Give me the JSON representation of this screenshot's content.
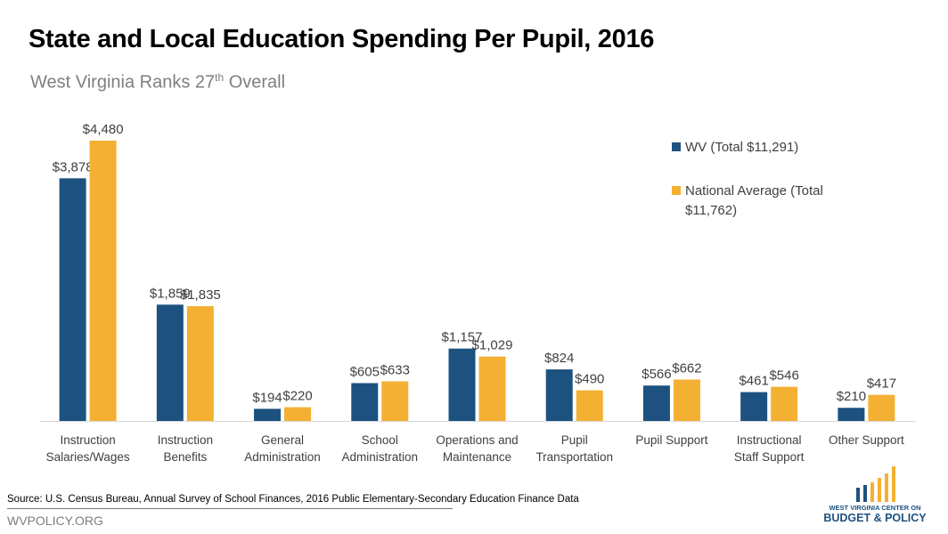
{
  "title": "State and Local Education Spending Per Pupil, 2016",
  "subtitle": {
    "text": "West Virginia Ranks 27",
    "sup": "th",
    "tail": " Overall"
  },
  "source": "Source: U.S. Census Bureau, Annual Survey of School Finances, 2016 Public Elementary-Secondary Education Finance Data",
  "site": "WVPOLICY.ORG",
  "logo": {
    "line1": "WEST VIRGINIA CENTER ON",
    "line2": "BUDGET & POLICY"
  },
  "chart_data": {
    "type": "bar",
    "categories": [
      [
        "Instruction",
        "Salaries/Wages"
      ],
      [
        "Instruction",
        "Benefits"
      ],
      [
        "General",
        "Administration"
      ],
      [
        "School",
        "Administration"
      ],
      [
        "Operations and",
        "Maintenance"
      ],
      [
        "Pupil",
        "Transportation"
      ],
      [
        "Pupil Support"
      ],
      [
        "Instructional",
        "Staff Support"
      ],
      [
        "Other Support"
      ]
    ],
    "series": [
      {
        "name": "WV (Total $11,291)",
        "color": "#1d5280",
        "values": [
          3878,
          1859,
          194,
          605,
          1157,
          824,
          566,
          461,
          210
        ],
        "labels": [
          "$3,878",
          "$1,859",
          "$194",
          "$605",
          "$1,157",
          "$824",
          "$566",
          "$461",
          "$210"
        ]
      },
      {
        "name": "National Average (Total $11,762)",
        "color": "#f4b032",
        "values": [
          4480,
          1835,
          220,
          633,
          1029,
          490,
          662,
          546,
          417
        ],
        "labels": [
          "$4,480",
          "$1,835",
          "$220",
          "$633",
          "$1,029",
          "$490",
          "$662",
          "$546",
          "$417"
        ]
      }
    ],
    "legend_lines": [
      [
        "WV (Total $11,291)"
      ],
      [
        "National Average (Total",
        "$11,762)"
      ]
    ],
    "ylim": [
      0,
      4480
    ],
    "grid": false,
    "legend": "top-right"
  }
}
